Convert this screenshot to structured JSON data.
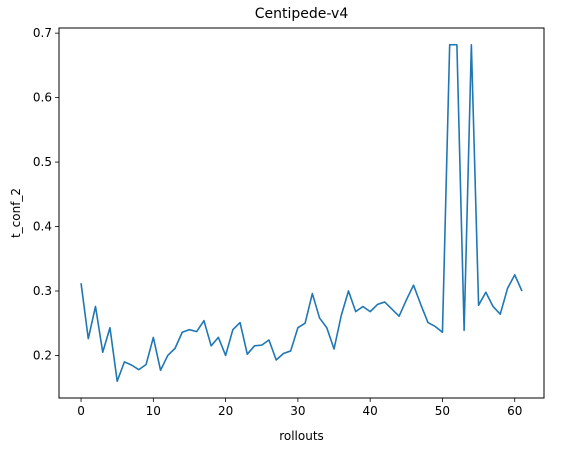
{
  "chart_data": {
    "type": "line",
    "title": "Centipede-v4",
    "xlabel": "rollouts",
    "ylabel": "t_conf_2",
    "xlim": [
      -3.05,
      64.05
    ],
    "ylim": [
      0.134,
      0.708
    ],
    "xticks": [
      0,
      10,
      20,
      30,
      40,
      50,
      60
    ],
    "yticks": [
      0.2,
      0.3,
      0.4,
      0.5,
      0.6,
      0.7
    ],
    "grid": false,
    "legend": "none",
    "line_color": "#1f77b4",
    "series": [
      {
        "x": [
          0,
          1,
          2,
          3,
          4,
          5,
          6,
          7,
          8,
          9,
          10,
          11,
          12,
          13,
          14,
          15,
          16,
          17,
          18,
          19,
          20,
          21,
          22,
          23,
          24,
          25,
          26,
          27,
          28,
          29,
          30,
          31,
          32,
          33,
          34,
          35,
          36,
          37,
          38,
          39,
          40,
          41,
          42,
          43,
          44,
          45,
          46,
          47,
          48,
          49,
          50,
          51,
          52,
          53,
          54,
          55,
          56,
          57,
          58,
          59,
          60,
          61
        ],
        "values": [
          0.312,
          0.226,
          0.276,
          0.205,
          0.243,
          0.16,
          0.19,
          0.185,
          0.178,
          0.186,
          0.228,
          0.177,
          0.2,
          0.211,
          0.236,
          0.24,
          0.237,
          0.254,
          0.215,
          0.228,
          0.2,
          0.24,
          0.251,
          0.202,
          0.215,
          0.216,
          0.224,
          0.193,
          0.203,
          0.207,
          0.243,
          0.25,
          0.296,
          0.258,
          0.243,
          0.21,
          0.262,
          0.3,
          0.268,
          0.276,
          0.268,
          0.279,
          0.283,
          0.272,
          0.261,
          0.286,
          0.309,
          0.279,
          0.251,
          0.245,
          0.236,
          0.682,
          0.682,
          0.239,
          0.682,
          0.278,
          0.298,
          0.276,
          0.264,
          0.304,
          0.325,
          0.3
        ]
      }
    ]
  }
}
